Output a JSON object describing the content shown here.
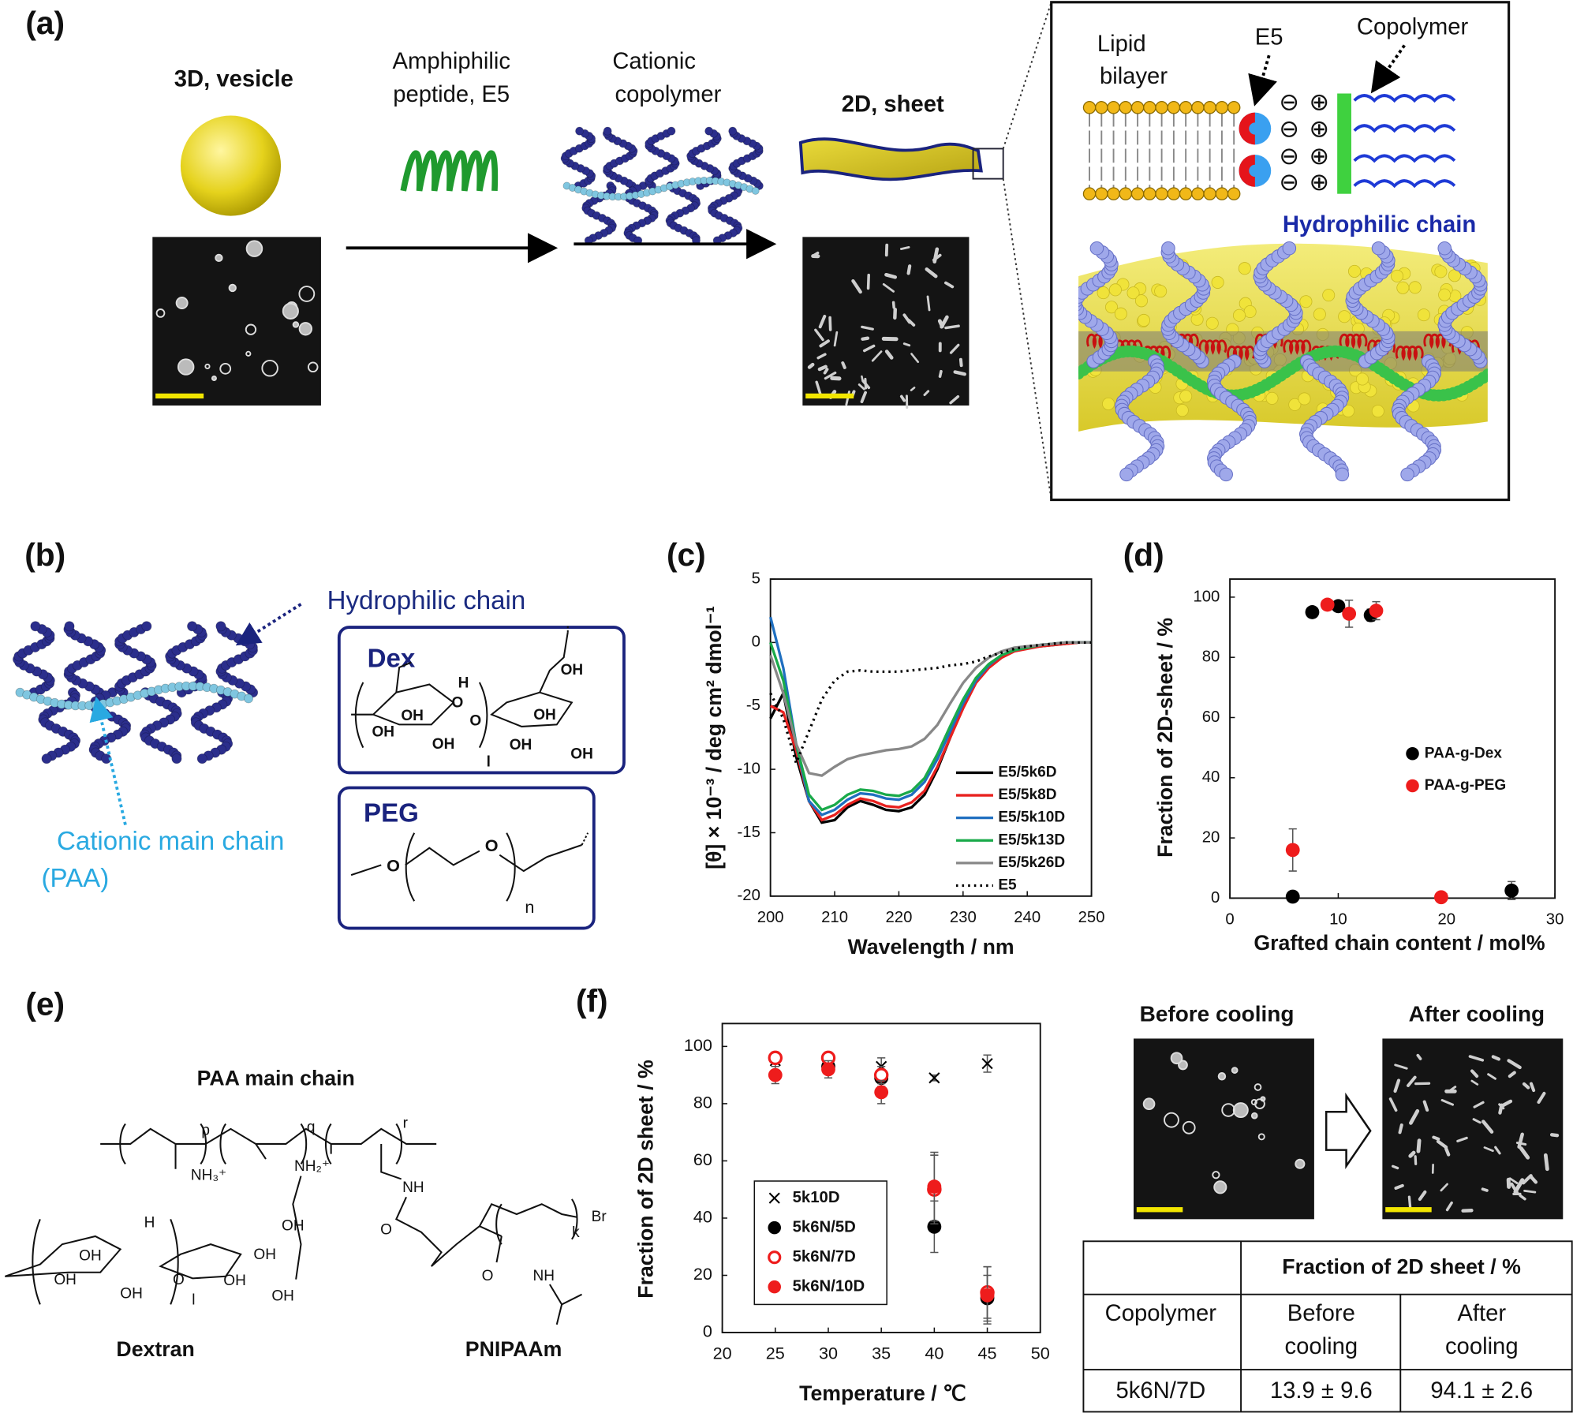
{
  "panel_a": {
    "label": "(a)",
    "vesicle_title": "3D, vesicle",
    "peptide_label": [
      "Amphiphilic",
      "peptide, E5"
    ],
    "copolymer_label": [
      "Cationic",
      "copolymer"
    ],
    "sheet_title": "2D, sheet",
    "inset": {
      "lipid_label": [
        "Lipid",
        "bilayer"
      ],
      "e5_label": "E5",
      "copolymer_label": "Copolymer",
      "hydrophilic_label": "Hydrophilic chain",
      "negative_charge": "⊖",
      "positive_charge": "⊕"
    }
  },
  "panel_b": {
    "label": "(b)",
    "hydrophilic_label": "Hydrophilic chain",
    "main_chain_label": [
      "Cationic main chain",
      "(PAA)"
    ],
    "dex": {
      "title": "Dex",
      "atoms": [
        "H",
        "O",
        "OH",
        "OH",
        "OH",
        "O",
        "l",
        "OH",
        "OH",
        "OH",
        "OH"
      ]
    },
    "peg": {
      "title": "PEG",
      "atoms": [
        "O",
        "O",
        "n"
      ]
    }
  },
  "chart_data": [
    {
      "type": "line",
      "panel_label": "(c)",
      "x_label": "Wavelength / nm",
      "y_label": "[θ] × 10⁻³ / deg cm² dmol⁻¹",
      "x": [
        200,
        202,
        204,
        206,
        208,
        210,
        212,
        214,
        216,
        218,
        220,
        222,
        224,
        226,
        228,
        230,
        232,
        234,
        236,
        238,
        240,
        242,
        244,
        246,
        248,
        250
      ],
      "xlim": [
        200,
        250
      ],
      "xticks": [
        200,
        210,
        220,
        230,
        240,
        250
      ],
      "ylim": [
        -20,
        5
      ],
      "yticks": [
        -20,
        -15,
        -10,
        -5,
        0,
        5
      ],
      "legend": "lower-right",
      "series": [
        {
          "name": "E5/5k6D",
          "color": "#000000",
          "values": [
            -6,
            -4,
            -9,
            -12.5,
            -14.2,
            -14,
            -13,
            -12.5,
            -12.8,
            -13.2,
            -13.3,
            -13,
            -12,
            -10,
            -7.5,
            -5,
            -3,
            -1.8,
            -1,
            -0.6,
            -0.4,
            -0.3,
            -0.2,
            -0.1,
            0,
            0
          ]
        },
        {
          "name": "E5/5k8D",
          "color": "#e8211f",
          "values": [
            -5,
            -5.5,
            -8.5,
            -12.5,
            -14,
            -13.6,
            -12.8,
            -12.3,
            -12.5,
            -12.9,
            -13,
            -12.6,
            -11.7,
            -9.8,
            -7.5,
            -5.2,
            -3.2,
            -2,
            -1.2,
            -0.7,
            -0.5,
            -0.3,
            -0.2,
            -0.1,
            0,
            0
          ]
        },
        {
          "name": "E5/5k10D",
          "color": "#1f6fc0",
          "values": [
            2,
            -2,
            -8,
            -12.5,
            -13.6,
            -13.2,
            -12.4,
            -11.9,
            -12,
            -12.3,
            -12.4,
            -12,
            -11,
            -9.2,
            -7,
            -4.8,
            -3,
            -1.8,
            -1,
            -0.6,
            -0.4,
            -0.2,
            -0.1,
            0,
            0,
            0
          ]
        },
        {
          "name": "E5/5k13D",
          "color": "#1aaa4a",
          "values": [
            0,
            -3,
            -8,
            -12,
            -13.2,
            -12.8,
            -12,
            -11.6,
            -11.7,
            -12,
            -12.1,
            -11.7,
            -10.7,
            -8.8,
            -6.6,
            -4.5,
            -2.8,
            -1.7,
            -1,
            -0.6,
            -0.4,
            -0.2,
            -0.1,
            0,
            0,
            0
          ]
        },
        {
          "name": "E5/5k26D",
          "color": "#888888",
          "values": [
            -1,
            -4,
            -8,
            -10.3,
            -10.5,
            -9.8,
            -9.2,
            -8.9,
            -8.7,
            -8.5,
            -8.4,
            -8.2,
            -7.6,
            -6.5,
            -4.8,
            -3.2,
            -2,
            -1.2,
            -0.7,
            -0.4,
            -0.3,
            -0.2,
            -0.1,
            0,
            0,
            0
          ]
        },
        {
          "name": "E5",
          "color": "#000000",
          "dashed": true,
          "values": [
            -4,
            -6,
            -9.5,
            -7,
            -4.5,
            -3,
            -2.3,
            -2.2,
            -2.3,
            -2.3,
            -2.3,
            -2.2,
            -2.1,
            -2,
            -1.8,
            -1.7,
            -1.5,
            -1.1,
            -0.8,
            -0.5,
            -0.3,
            -0.2,
            -0.1,
            0,
            0,
            0
          ]
        }
      ]
    },
    {
      "type": "scatter",
      "panel_label": "(d)",
      "x_label": "Grafted chain content / mol%",
      "y_label": "Fraction of 2D-sheet / %",
      "xlim": [
        0,
        30
      ],
      "xticks": [
        0,
        10,
        20,
        30
      ],
      "ylim": [
        0,
        106
      ],
      "yticks": [
        0,
        20,
        40,
        60,
        80,
        100
      ],
      "legend": "center-right",
      "series": [
        {
          "name": "PAA-g-Dex",
          "color": "#000000",
          "marker": "circle",
          "x": [
            5.8,
            7.6,
            10,
            13,
            26
          ],
          "values": [
            0.5,
            95,
            97,
            94,
            2.5
          ],
          "errors": [
            0.5,
            1,
            1,
            2,
            3
          ]
        },
        {
          "name": "PAA-g-PEG",
          "color": "#ee1c1c",
          "marker": "circle",
          "x": [
            5.8,
            9,
            11,
            13.5,
            19.5
          ],
          "values": [
            16,
            97.5,
            94.5,
            95.5,
            0.3
          ],
          "errors": [
            7,
            1,
            4.5,
            3,
            0.5
          ]
        }
      ]
    },
    {
      "type": "scatter",
      "panel_label": "(f)",
      "x_label": "Temperature / ℃",
      "y_label": "Fraction of 2D sheet / %",
      "x": [
        25,
        30,
        35,
        40,
        45
      ],
      "xlim": [
        20,
        50
      ],
      "xticks": [
        20,
        25,
        30,
        35,
        40,
        45,
        50
      ],
      "ylim": [
        0,
        108
      ],
      "yticks": [
        0,
        20,
        40,
        60,
        80,
        100
      ],
      "legend": "lower-left",
      "legend_box": true,
      "series": [
        {
          "name": "5k10D",
          "color": "#000000",
          "marker": "x",
          "values": [
            95,
            94,
            93,
            89,
            94
          ],
          "errors": [
            2,
            2,
            3,
            1,
            3
          ]
        },
        {
          "name": "5k6N/5D",
          "color": "#000000",
          "marker": "circle",
          "values": [
            96,
            93,
            89,
            37,
            12
          ],
          "errors": [
            2,
            2,
            3,
            9,
            8
          ]
        },
        {
          "name": "5k6N/7D",
          "color": "#ee1c1c",
          "marker": "open-circle",
          "values": [
            96,
            96,
            90,
            50,
            14
          ],
          "errors": [
            2,
            2,
            3,
            12,
            9
          ]
        },
        {
          "name": "5k6N/10D",
          "color": "#ee1c1c",
          "marker": "circle",
          "values": [
            90,
            92,
            84,
            51,
            13
          ],
          "errors": [
            3,
            3,
            4,
            12,
            10
          ]
        }
      ]
    }
  ],
  "panel_e": {
    "label": "(e)",
    "title": "PAA main chain",
    "atoms": [
      "p",
      "q",
      "r",
      "NH₃⁺",
      "NH₂⁺",
      "NH",
      "O",
      "k",
      "Br",
      "H",
      "OH",
      "OH",
      "OH",
      "O",
      "l",
      "OH",
      "OH",
      "OH",
      "OH",
      "O",
      "NH"
    ],
    "dextran_label": "Dextran",
    "pnipaam_label": "PNIPAAm"
  },
  "cooling": {
    "before_title": "Before cooling",
    "after_title": "After cooling",
    "table": {
      "column_header": "Fraction of 2D sheet / %",
      "row_header": "Copolymer",
      "columns": [
        [
          "Before",
          "cooling"
        ],
        [
          "After",
          "cooling"
        ]
      ],
      "rows": [
        [
          "5k6N/7D",
          "13.9 ± 9.6",
          "94.1 ± 2.6"
        ]
      ]
    }
  }
}
